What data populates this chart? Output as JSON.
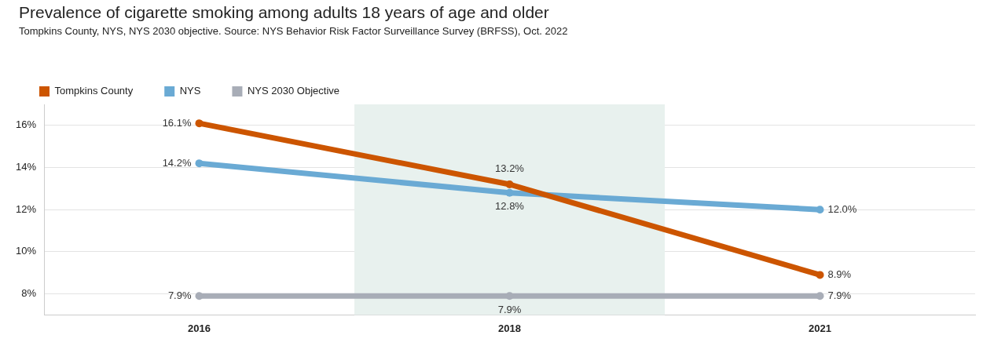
{
  "chart_data": {
    "type": "line",
    "title": "Prevalence of cigarette smoking among adults 18 years of age and older",
    "subtitle": "Tompkins County, NYS, NYS 2030 objective. Source: NYS Behavior Risk Factor Surveillance Survey (BRFSS), Oct. 2022",
    "categories": [
      "2016",
      "2018",
      "2021"
    ],
    "series": [
      {
        "name": "Tompkins County",
        "color": "#cc5500",
        "values": [
          16.1,
          13.2,
          8.9
        ],
        "value_labels": [
          "16.1%",
          "13.2%",
          "8.9%"
        ]
      },
      {
        "name": "NYS",
        "color": "#6aaad4",
        "values": [
          14.2,
          12.8,
          12.0
        ],
        "value_labels": [
          "14.2%",
          "12.8%",
          "12.0%"
        ]
      },
      {
        "name": "NYS 2030 Objective",
        "color": "#a8adb7",
        "values": [
          7.9,
          7.9,
          7.9
        ],
        "value_labels": [
          "7.9%",
          "7.9%",
          "7.9%"
        ]
      }
    ],
    "ylim": [
      7,
      17
    ],
    "yticks": [
      {
        "value": 8,
        "label": "8%"
      },
      {
        "value": 10,
        "label": "10%"
      },
      {
        "value": 12,
        "label": "12%"
      },
      {
        "value": 14,
        "label": "14%"
      },
      {
        "value": 16,
        "label": "16%"
      }
    ],
    "bands": [
      {
        "axis": "x",
        "from": "2018",
        "to": "2018",
        "color": "#e8f1ee"
      }
    ],
    "grid": "y",
    "legend": "top left",
    "marker": "circle",
    "line_style": "solid"
  }
}
